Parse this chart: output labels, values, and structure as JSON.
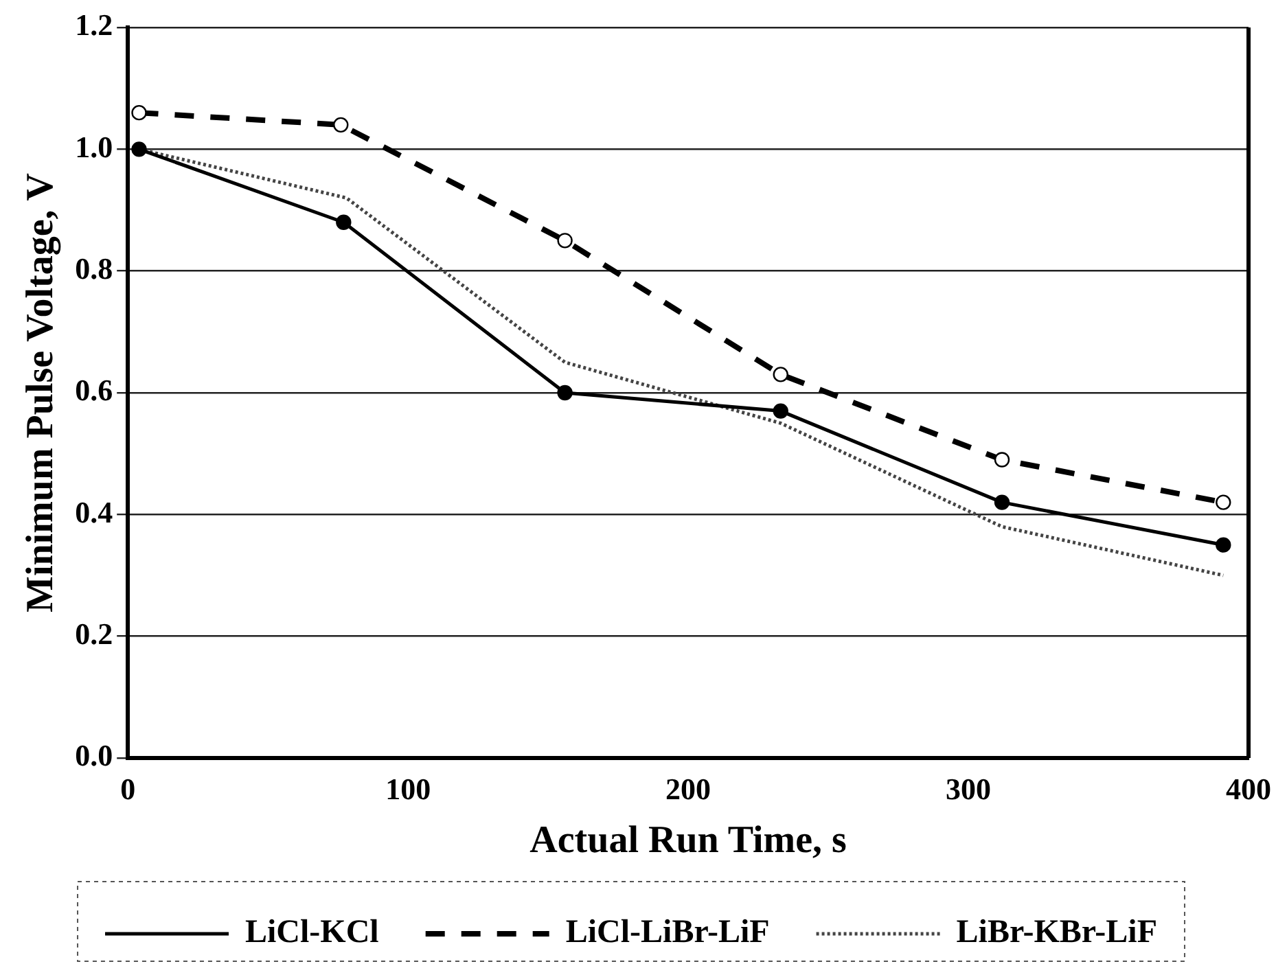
{
  "chart_data": {
    "type": "line",
    "xlabel": "Actual Run Time, s",
    "ylabel": "Minimum Pulse Voltage, V",
    "xlim": [
      0,
      400
    ],
    "xticks": [
      0,
      100,
      200,
      300,
      400
    ],
    "ylim": [
      0,
      1.2
    ],
    "yticks": [
      {
        "value": 0,
        "label": "0.0"
      },
      {
        "value": 0.2,
        "label": "0.2"
      },
      {
        "value": 0.4,
        "label": "0.4"
      },
      {
        "value": 0.6,
        "label": "0.6"
      },
      {
        "value": 0.8,
        "label": "0.8"
      },
      {
        "value": 1,
        "label": "1.0"
      },
      {
        "value": 1.2,
        "label": "1.2"
      }
    ],
    "grid": "y",
    "legend": "bottom",
    "series": [
      {
        "name": "LiCl-KCl",
        "color": "#000000",
        "x": [
          4,
          77,
          156,
          233,
          312,
          391
        ],
        "values": [
          1.0,
          0.88,
          0.6,
          0.57,
          0.42,
          0.35
        ],
        "marker": "circle",
        "line_style": "solid"
      },
      {
        "name": "LiCl-LiBr-LiF",
        "color": "#000000",
        "x": [
          4,
          76,
          156,
          233,
          312,
          391
        ],
        "values": [
          1.06,
          1.04,
          0.85,
          0.63,
          0.49,
          0.42
        ],
        "marker": "circle",
        "line_style": "dashed"
      },
      {
        "name": "LiBr-KBr-LiF",
        "color": "#444444",
        "x": [
          4,
          78,
          156,
          233,
          312,
          391
        ],
        "values": [
          1.0,
          0.92,
          0.65,
          0.55,
          0.38,
          0.3
        ],
        "marker": "none",
        "line_style": "dotted"
      }
    ]
  }
}
